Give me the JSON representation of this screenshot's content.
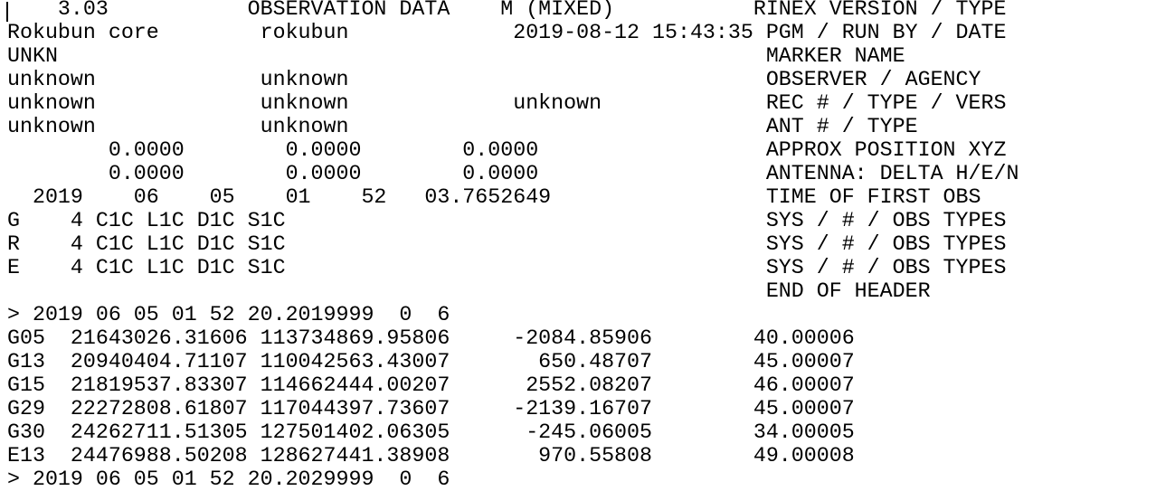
{
  "editor": {
    "lines": [
      "    3.03           OBSERVATION DATA    M (MIXED)           RINEX VERSION / TYPE",
      "Rokubun core        rokubun             2019-08-12 15:43:35 PGM / RUN BY / DATE",
      "UNKN                                                        MARKER NAME",
      "unknown             unknown                                 OBSERVER / AGENCY",
      "unknown             unknown             unknown             REC # / TYPE / VERS",
      "unknown             unknown                                 ANT # / TYPE",
      "        0.0000        0.0000        0.0000                  APPROX POSITION XYZ",
      "        0.0000        0.0000        0.0000                  ANTENNA: DELTA H/E/N",
      "  2019    06    05    01    52   03.7652649                 TIME OF FIRST OBS",
      "G    4 C1C L1C D1C S1C                                      SYS / # / OBS TYPES",
      "R    4 C1C L1C D1C S1C                                      SYS / # / OBS TYPES",
      "E    4 C1C L1C D1C S1C                                      SYS / # / OBS TYPES",
      "                                                            END OF HEADER",
      "> 2019 06 05 01 52 20.2019999  0  6",
      "G05  21643026.31606 113734869.95806     -2084.85906        40.00006",
      "G13  20940404.71107 110042563.43007       650.48707        45.00007",
      "G15  21819537.83307 114662444.00207      2552.08207        46.00007",
      "G29  22272808.61807 117044397.73607     -2139.16707        45.00007",
      "G30  24262711.51305 127501402.06305      -245.06005        34.00005",
      "E13  24476988.50208 128627441.38908       970.55808        49.00008",
      "> 2019 06 05 01 52 20.2029999  0  6"
    ]
  }
}
